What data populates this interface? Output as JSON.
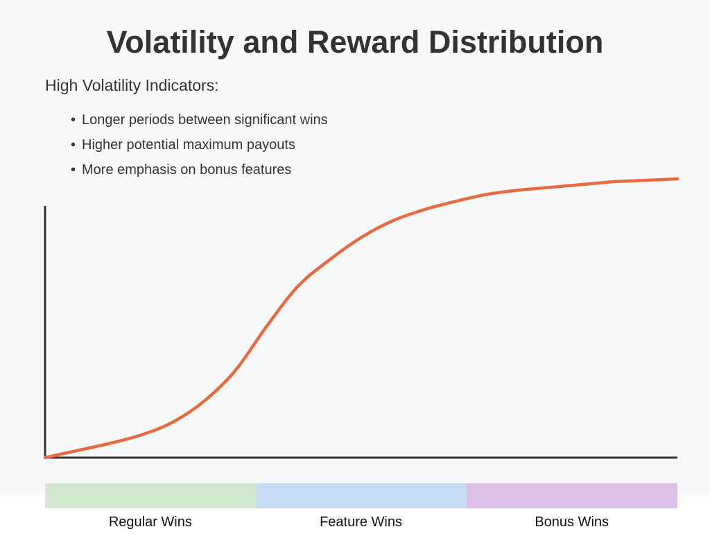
{
  "chart_data": {
    "type": "line",
    "title": "Volatility and Reward Distribution",
    "subtitle": "High Volatility Indicators:",
    "bullets": [
      "Longer periods between significant wins",
      "Higher potential maximum payouts",
      "More emphasis on bonus features"
    ],
    "xlabel": "",
    "ylabel": "",
    "xlim": [
      0,
      100
    ],
    "ylim": [
      0,
      100
    ],
    "grid": false,
    "series": [
      {
        "x": [
          0,
          5,
          10,
          15,
          20,
          25,
          30,
          35,
          40,
          45,
          50,
          55,
          60,
          65,
          70,
          75,
          80,
          85,
          90,
          95,
          100
        ],
        "y": [
          0,
          2.5,
          5,
          8,
          12.5,
          20,
          31,
          47,
          61.5,
          71,
          79,
          85,
          89,
          92,
          94.5,
          96,
          97,
          98,
          99,
          99.5,
          100
        ],
        "color": "#e96a3f"
      }
    ],
    "bands": [
      {
        "label": "Regular Wins",
        "range": [
          0,
          33.3
        ],
        "color": "#d3e8d1"
      },
      {
        "label": "Feature Wins",
        "range": [
          33.3,
          66.6
        ],
        "color": "#c9dcf5"
      },
      {
        "label": "Bonus Wins",
        "range": [
          66.6,
          100
        ],
        "color": "#dcc0e6"
      }
    ]
  }
}
